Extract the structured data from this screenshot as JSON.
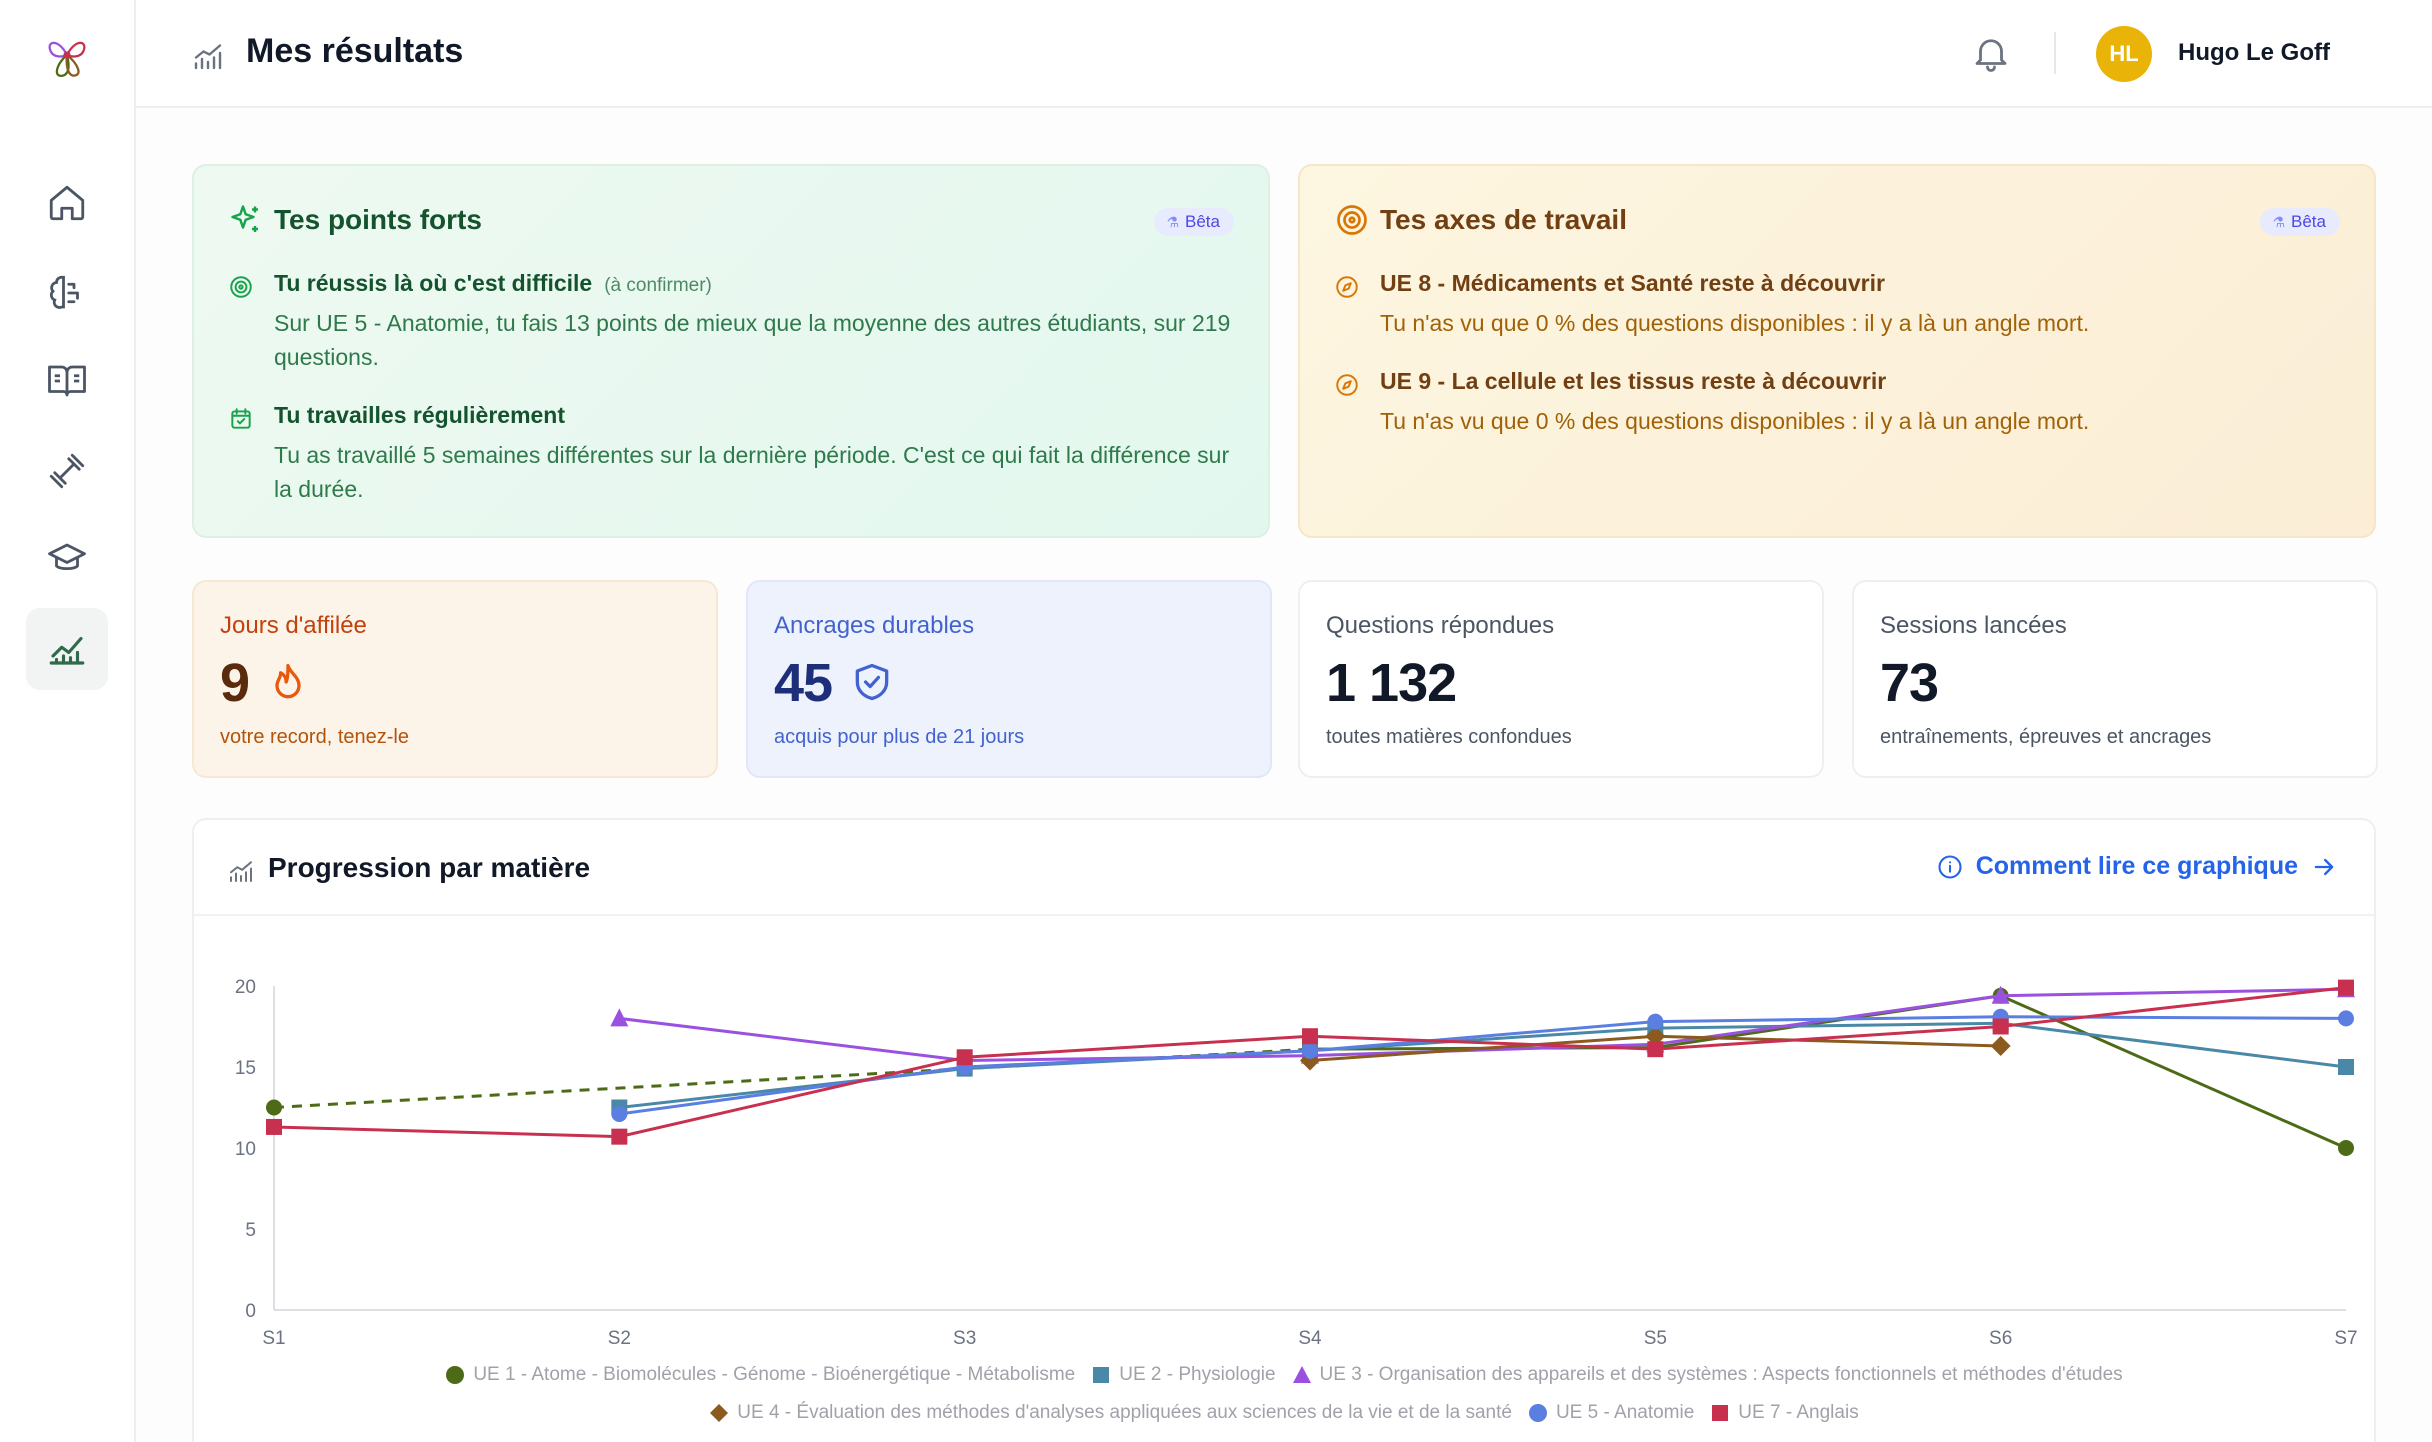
{
  "header": {
    "title": "Mes résultats",
    "user": {
      "initials": "HL",
      "name": "Hugo Le Goff"
    }
  },
  "sidebar": {
    "items": [
      {
        "icon": "home-icon",
        "active": false
      },
      {
        "icon": "brain-icon",
        "active": false
      },
      {
        "icon": "book-open-icon",
        "active": false
      },
      {
        "icon": "dumbbell-icon",
        "active": false
      },
      {
        "icon": "graduation-cap-icon",
        "active": false
      },
      {
        "icon": "chart-line-icon",
        "active": true
      }
    ]
  },
  "strengths": {
    "title": "Tes points forts",
    "badge": "Bêta",
    "items": [
      {
        "icon": "target-icon",
        "title": "Tu réussis là où c'est difficile",
        "note": "(à confirmer)",
        "desc": "Sur UE 5 - Anatomie, tu fais 13 points de mieux que la moyenne des autres étudiants, sur 219 questions."
      },
      {
        "icon": "calendar-check-icon",
        "title": "Tu travailles régulièrement",
        "note": "",
        "desc": "Tu as travaillé 5 semaines différentes sur la dernière période. C'est ce qui fait la différence sur la durée."
      }
    ]
  },
  "axes": {
    "title": "Tes axes de travail",
    "badge": "Bêta",
    "items": [
      {
        "icon": "compass-icon",
        "title": "UE 8 - Médicaments et Santé reste à découvrir",
        "desc": "Tu n'as vu que 0 % des questions disponibles : il y a là un angle mort."
      },
      {
        "icon": "compass-icon",
        "title": "UE 9 - La cellule et les tissus reste à découvrir",
        "desc": "Tu n'as vu que 0 % des questions disponibles : il y a là un angle mort."
      }
    ]
  },
  "stats": {
    "streak": {
      "label": "Jours d'affilée",
      "value": "9",
      "sub": "votre record, tenez-le",
      "icon": "flame-icon"
    },
    "anchors": {
      "label": "Ancrages durables",
      "value": "45",
      "sub": "acquis pour plus de 21 jours",
      "icon": "shield-check-icon"
    },
    "questions": {
      "label": "Questions répondues",
      "value": "1 132",
      "sub": "toutes matières confondues"
    },
    "sessions": {
      "label": "Sessions lancées",
      "value": "73",
      "sub": "entraînements, épreuves et ancrages"
    }
  },
  "chart": {
    "title": "Progression par matière",
    "help_label": "Comment lire ce graphique"
  },
  "colors": {
    "ue1": "#4d6b16",
    "ue2": "#4a88a8",
    "ue3": "#9b51e0",
    "ue4": "#8b5a1e",
    "ue5": "#5b7fe0",
    "ue7": "#c8304f"
  },
  "chart_data": {
    "type": "line",
    "categories": [
      "S1",
      "S2",
      "S3",
      "S4",
      "S5",
      "S6",
      "S7"
    ],
    "ylim": [
      0,
      20
    ],
    "yticks": [
      0,
      5,
      10,
      15,
      20
    ],
    "series": [
      {
        "name": "UE 1 - Atome - Biomolécules - Génome - Bioénergétique - Métabolisme",
        "marker": "circle",
        "color": "#4d6b16",
        "values": [
          12.5,
          null,
          null,
          16.1,
          16.2,
          19.4,
          10.0
        ],
        "dashed_gap": true
      },
      {
        "name": "UE 2 - Physiologie",
        "marker": "square",
        "color": "#4a88a8",
        "values": [
          null,
          12.5,
          14.9,
          16.0,
          17.4,
          17.7,
          15.0
        ]
      },
      {
        "name": "UE 3 - Organisation des appareils et des systèmes : Aspects fonctionnels et méthodes d'études",
        "marker": "triangle",
        "color": "#9b51e0",
        "values": [
          null,
          18.0,
          15.4,
          15.7,
          16.4,
          19.4,
          19.8
        ]
      },
      {
        "name": "UE 4 - Évaluation des méthodes d'analyses appliquées aux sciences de la vie et de la santé",
        "marker": "diamond",
        "color": "#8b5a1e",
        "values": [
          null,
          null,
          null,
          15.4,
          16.9,
          16.3,
          null
        ]
      },
      {
        "name": "UE 5 - Anatomie",
        "marker": "circle",
        "color": "#5b7fe0",
        "values": [
          null,
          12.1,
          15.0,
          16.0,
          17.8,
          18.1,
          18.0
        ]
      },
      {
        "name": "UE 7 - Anglais",
        "marker": "square",
        "color": "#c8304f",
        "values": [
          11.3,
          10.7,
          15.6,
          16.9,
          16.1,
          17.5,
          19.9
        ]
      }
    ]
  }
}
